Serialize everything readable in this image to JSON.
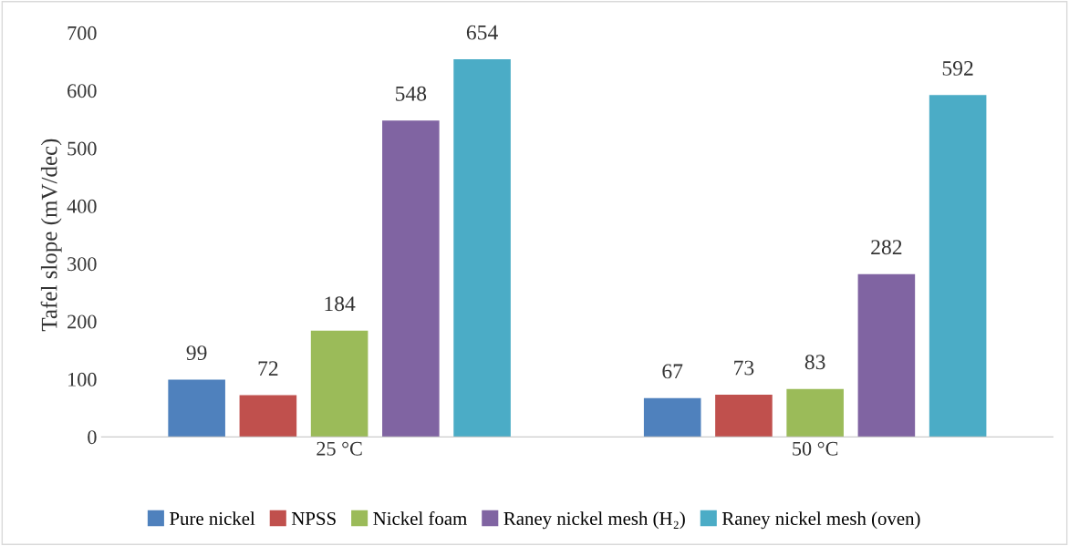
{
  "chart_data": {
    "type": "bar",
    "ylabel": "Tafel slope (mV/dec)",
    "categories": [
      "25 °C",
      "50 °C"
    ],
    "series": [
      {
        "name": "Pure nickel",
        "color": "#4f81bd",
        "values": [
          99,
          67
        ]
      },
      {
        "name": "NPSS",
        "color": "#c0504d",
        "values": [
          72,
          73
        ]
      },
      {
        "name": "Nickel foam",
        "color": "#9bbb59",
        "values": [
          184,
          83
        ]
      },
      {
        "name": "Raney nickel mesh (H₂)",
        "color": "#8064a2",
        "values": [
          548,
          282
        ]
      },
      {
        "name": "Raney nickel mesh (oven)",
        "color": "#4bacc6",
        "values": [
          654,
          592
        ]
      }
    ],
    "ylim": [
      0,
      700
    ],
    "yticks": [
      0,
      100,
      200,
      300,
      400,
      500,
      600,
      700
    ],
    "data_labels": true,
    "grid": false,
    "legend": "bottom"
  }
}
